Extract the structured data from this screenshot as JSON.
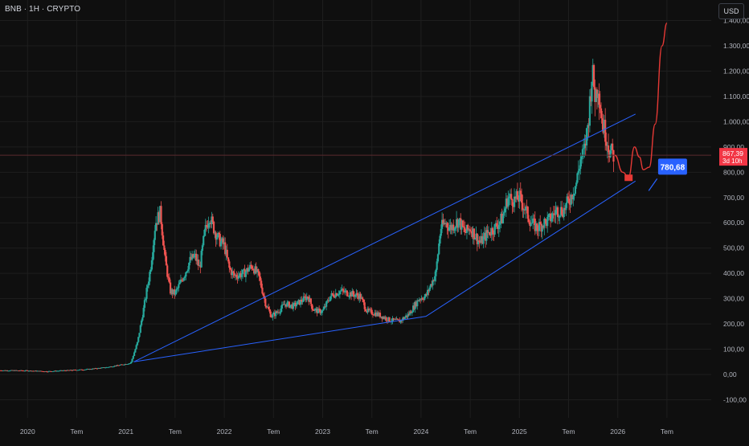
{
  "header": {
    "symbol": "BNB · 1H · CRYPTO",
    "currency": "USD"
  },
  "colors": {
    "background": "#0f0f0f",
    "grid": "#1e1e1e",
    "up": "#26a69a",
    "down": "#ef5350",
    "channel": "#2962ff",
    "projection": "#e53935",
    "target_badge": "#2962ff",
    "price_badge": "#f23645",
    "text": "#d1d4dc"
  },
  "chart_data": {
    "type": "candlestick",
    "ylim": [
      -150,
      1450
    ],
    "y_ticks": [
      -100,
      0,
      100,
      200,
      300,
      400,
      500,
      600,
      700,
      800,
      900,
      1000,
      1100,
      1200,
      1300,
      1400
    ],
    "y_tick_labels": [
      "-100,00",
      "0,00",
      "100,00",
      "200,00",
      "300,00",
      "400,00",
      "500,00",
      "600,00",
      "700,00",
      "800,00",
      "900,00",
      "1.000,00",
      "1.100,00",
      "1.200,00",
      "1.300,00",
      "1.400,00"
    ],
    "x_ticks": [
      {
        "t": 2020.0,
        "label": "2020"
      },
      {
        "t": 2020.5,
        "label": "Tem"
      },
      {
        "t": 2021.0,
        "label": "2021"
      },
      {
        "t": 2021.5,
        "label": "Tem"
      },
      {
        "t": 2022.0,
        "label": "2022"
      },
      {
        "t": 2022.5,
        "label": "Tem"
      },
      {
        "t": 2023.0,
        "label": "2023"
      },
      {
        "t": 2023.5,
        "label": "Tem"
      },
      {
        "t": 2024.0,
        "label": "2024"
      },
      {
        "t": 2024.5,
        "label": "Tem"
      },
      {
        "t": 2025.0,
        "label": "2025"
      },
      {
        "t": 2025.5,
        "label": "Tem"
      },
      {
        "t": 2026.0,
        "label": "2026"
      },
      {
        "t": 2026.5,
        "label": "Tem"
      }
    ],
    "price_path": [
      [
        2019.72,
        16
      ],
      [
        2020.0,
        15
      ],
      [
        2020.2,
        12
      ],
      [
        2020.4,
        16
      ],
      [
        2020.6,
        20
      ],
      [
        2020.8,
        28
      ],
      [
        2020.95,
        38
      ],
      [
        2021.05,
        45
      ],
      [
        2021.12,
        130
      ],
      [
        2021.18,
        260
      ],
      [
        2021.25,
        420
      ],
      [
        2021.3,
        600
      ],
      [
        2021.35,
        640
      ],
      [
        2021.4,
        450
      ],
      [
        2021.45,
        330
      ],
      [
        2021.5,
        320
      ],
      [
        2021.55,
        360
      ],
      [
        2021.6,
        400
      ],
      [
        2021.65,
        450
      ],
      [
        2021.7,
        470
      ],
      [
        2021.75,
        420
      ],
      [
        2021.8,
        560
      ],
      [
        2021.85,
        630
      ],
      [
        2021.9,
        570
      ],
      [
        2021.95,
        530
      ],
      [
        2022.0,
        510
      ],
      [
        2022.05,
        420
      ],
      [
        2022.1,
        390
      ],
      [
        2022.2,
        400
      ],
      [
        2022.28,
        430
      ],
      [
        2022.35,
        390
      ],
      [
        2022.42,
        280
      ],
      [
        2022.48,
        230
      ],
      [
        2022.55,
        250
      ],
      [
        2022.62,
        280
      ],
      [
        2022.7,
        270
      ],
      [
        2022.78,
        290
      ],
      [
        2022.85,
        310
      ],
      [
        2022.9,
        260
      ],
      [
        2022.95,
        250
      ],
      [
        2023.0,
        250
      ],
      [
        2023.08,
        310
      ],
      [
        2023.18,
        330
      ],
      [
        2023.28,
        320
      ],
      [
        2023.38,
        310
      ],
      [
        2023.45,
        250
      ],
      [
        2023.55,
        240
      ],
      [
        2023.68,
        215
      ],
      [
        2023.78,
        210
      ],
      [
        2023.88,
        240
      ],
      [
        2023.98,
        300
      ],
      [
        2024.05,
        310
      ],
      [
        2024.15,
        400
      ],
      [
        2024.2,
        580
      ],
      [
        2024.25,
        600
      ],
      [
        2024.3,
        580
      ],
      [
        2024.38,
        610
      ],
      [
        2024.45,
        560
      ],
      [
        2024.5,
        580
      ],
      [
        2024.6,
        520
      ],
      [
        2024.68,
        560
      ],
      [
        2024.75,
        580
      ],
      [
        2024.83,
        620
      ],
      [
        2024.88,
        700
      ],
      [
        2024.95,
        690
      ],
      [
        2025.0,
        700
      ],
      [
        2025.05,
        660
      ],
      [
        2025.12,
        600
      ],
      [
        2025.18,
        580
      ],
      [
        2025.25,
        600
      ],
      [
        2025.3,
        610
      ],
      [
        2025.38,
        650
      ],
      [
        2025.45,
        650
      ],
      [
        2025.52,
        700
      ],
      [
        2025.58,
        760
      ],
      [
        2025.62,
        850
      ],
      [
        2025.66,
        880
      ],
      [
        2025.7,
        1000
      ],
      [
        2025.74,
        1200
      ],
      [
        2025.77,
        1100
      ],
      [
        2025.8,
        1150
      ],
      [
        2025.84,
        1000
      ],
      [
        2025.88,
        950
      ],
      [
        2025.92,
        880
      ],
      [
        2025.96,
        867
      ]
    ],
    "channel": {
      "upper": [
        [
          2021.08,
          50
        ],
        [
          2026.18,
          1030
        ]
      ],
      "lower": [
        [
          2021.08,
          50
        ],
        [
          2024.05,
          230
        ],
        [
          2026.18,
          765
        ]
      ]
    },
    "projection": {
      "path": [
        [
          2025.97,
          867
        ],
        [
          2026.05,
          800
        ],
        [
          2026.11,
          781
        ],
        [
          2026.17,
          900
        ],
        [
          2026.22,
          860
        ],
        [
          2026.26,
          810
        ],
        [
          2026.32,
          820
        ],
        [
          2026.38,
          990
        ],
        [
          2026.45,
          1300
        ],
        [
          2026.5,
          1390
        ]
      ],
      "arrow_end": [
        2026.11,
        778
      ]
    },
    "current_price": {
      "value": 867.39,
      "label": "867,39",
      "countdown": "3d 10h"
    },
    "target": {
      "value": 780.68,
      "label": "780,68"
    }
  }
}
